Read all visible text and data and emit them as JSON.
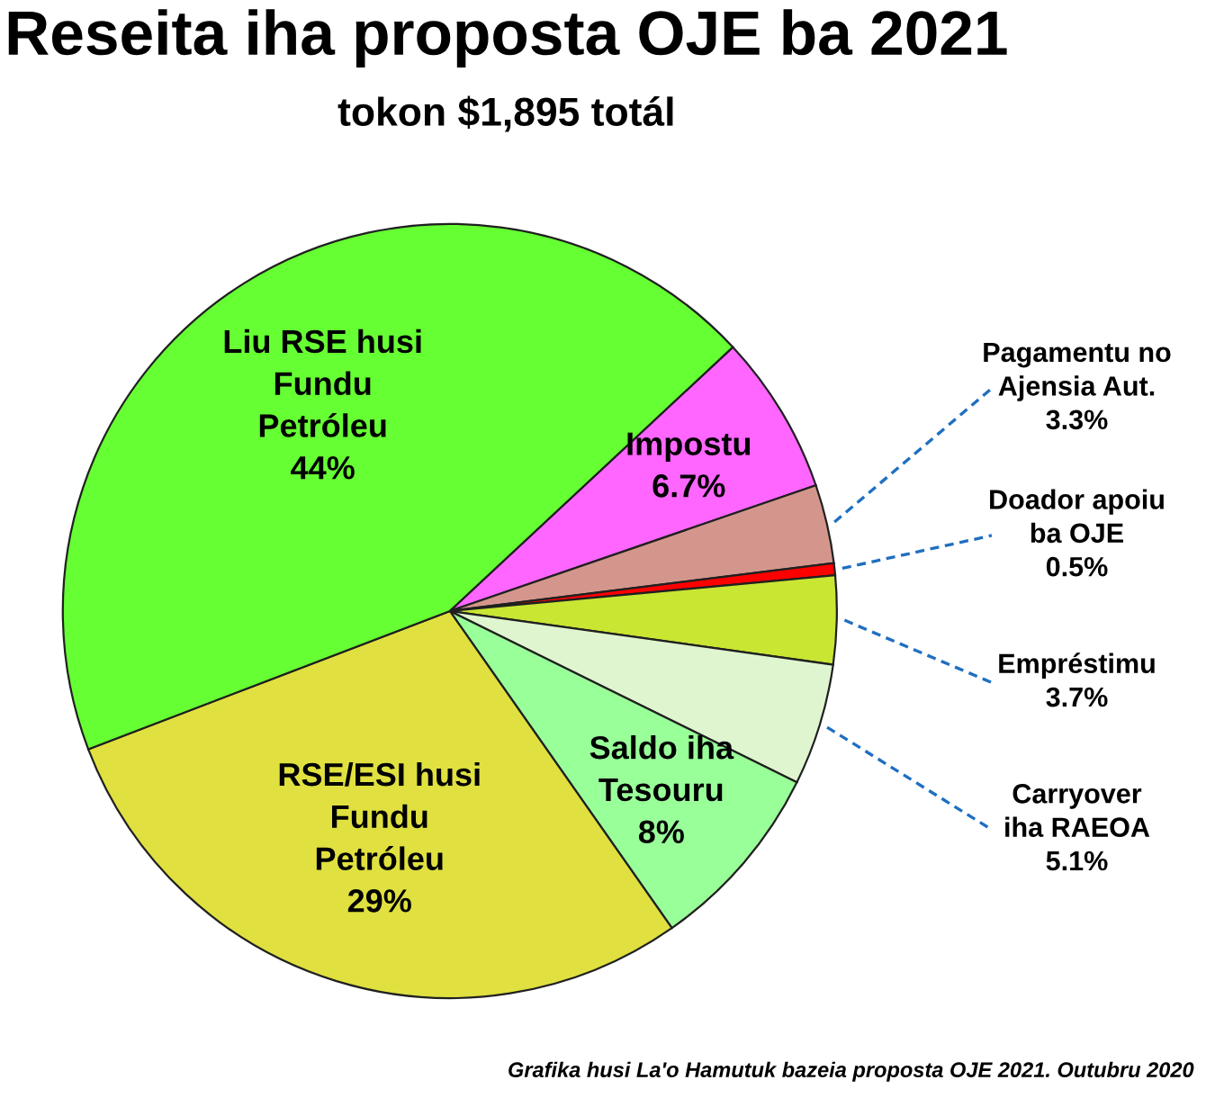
{
  "chart_data": {
    "type": "pie",
    "title": "Reseita iha proposta OJE ba 2021",
    "subtitle": "tokon $1,895 totál",
    "categories": [
      "Impostu",
      "Pagamentu no\nAjensia Aut.",
      "Doador apoiu\nba OJE",
      "Empréstimu",
      "Carryover\niha RAEOA",
      "Saldo iha\nTesouru",
      "RSE/ESI husi\nFundu\nPetróleu",
      "Liu RSE husi\nFundu\nPetróleu"
    ],
    "values": [
      6.7,
      3.3,
      0.5,
      3.7,
      5.1,
      8,
      29,
      44
    ],
    "value_labels": [
      "6.7%",
      "3.3%",
      "0.5%",
      "3.7%",
      "5.1%",
      "8%",
      "29%",
      "44%"
    ],
    "colors": [
      "#ff66ff",
      "#d4968c",
      "#ff0000",
      "#c8e632",
      "#dff5cf",
      "#99ff99",
      "#e0e040",
      "#66ff33"
    ],
    "annotations": [
      "Grafika husi La'o Hamutuk bazeia proposta OJE 2021. Outubru 2020"
    ]
  }
}
